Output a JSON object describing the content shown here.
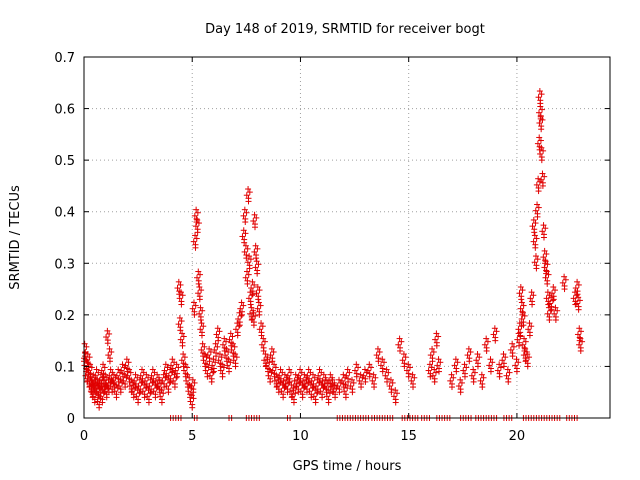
{
  "chart_data": {
    "type": "scatter",
    "title": "Day 148 of 2019, SRMTID for receiver bogt",
    "xlabel": "GPS time / hours",
    "ylabel": "SRMTID / TECUs",
    "xlim": [
      0,
      24.3
    ],
    "ylim": [
      0,
      0.7
    ],
    "xticks": [
      0,
      5,
      10,
      15,
      20
    ],
    "xtick_labels": [
      "0",
      "5",
      "10",
      "15",
      "20"
    ],
    "yticks": [
      0,
      0.1,
      0.2,
      0.3,
      0.4,
      0.5,
      0.6,
      0.7
    ],
    "ytick_labels": [
      "0",
      "0.1",
      "0.2",
      "0.3",
      "0.4",
      "0.5",
      "0.6",
      "0.7"
    ],
    "grid": true,
    "marker": "+",
    "marker_color": "#e00000",
    "series": [
      {
        "name": "SRMTID",
        "points": [
          [
            0.0,
            0.11
          ],
          [
            0.05,
            0.12
          ],
          [
            0.1,
            0.09
          ],
          [
            0.15,
            0.07
          ],
          [
            0.2,
            0.1
          ],
          [
            0.25,
            0.06
          ],
          [
            0.3,
            0.08
          ],
          [
            0.35,
            0.05
          ],
          [
            0.4,
            0.04
          ],
          [
            0.45,
            0.06
          ],
          [
            0.5,
            0.03
          ],
          [
            0.55,
            0.05
          ],
          [
            0.6,
            0.07
          ],
          [
            0.65,
            0.04
          ],
          [
            0.7,
            0.02
          ],
          [
            0.75,
            0.05
          ],
          [
            0.8,
            0.06
          ],
          [
            0.85,
            0.03
          ],
          [
            0.9,
            0.08
          ],
          [
            0.95,
            0.05
          ],
          [
            1.0,
            0.06
          ],
          [
            1.05,
            0.04
          ],
          [
            1.1,
            0.145
          ],
          [
            1.15,
            0.05
          ],
          [
            1.2,
            0.11
          ],
          [
            1.25,
            0.07
          ],
          [
            1.3,
            0.05
          ],
          [
            1.4,
            0.06
          ],
          [
            1.5,
            0.04
          ],
          [
            1.6,
            0.07
          ],
          [
            1.7,
            0.05
          ],
          [
            1.8,
            0.08
          ],
          [
            1.9,
            0.06
          ],
          [
            2.0,
            0.09
          ],
          [
            2.1,
            0.07
          ],
          [
            2.2,
            0.05
          ],
          [
            2.3,
            0.04
          ],
          [
            2.4,
            0.06
          ],
          [
            2.5,
            0.03
          ],
          [
            2.6,
            0.05
          ],
          [
            2.7,
            0.07
          ],
          [
            2.8,
            0.04
          ],
          [
            2.9,
            0.06
          ],
          [
            3.0,
            0.03
          ],
          [
            3.1,
            0.05
          ],
          [
            3.2,
            0.07
          ],
          [
            3.3,
            0.04
          ],
          [
            3.4,
            0.06
          ],
          [
            3.5,
            0.05
          ],
          [
            3.6,
            0.03
          ],
          [
            3.7,
            0.06
          ],
          [
            3.8,
            0.08
          ],
          [
            3.9,
            0.05
          ],
          [
            4.0,
            0.07
          ],
          [
            4.1,
            0.09
          ],
          [
            4.2,
            0.06
          ],
          [
            4.3,
            0.08
          ],
          [
            4.4,
            0.24
          ],
          [
            4.45,
            0.17
          ],
          [
            4.5,
            0.22
          ],
          [
            4.55,
            0.14
          ],
          [
            4.6,
            0.1
          ],
          [
            4.7,
            0.08
          ],
          [
            4.8,
            0.06
          ],
          [
            4.9,
            0.04
          ],
          [
            5.0,
            0.02
          ],
          [
            5.05,
            0.05
          ],
          [
            5.1,
            0.2
          ],
          [
            5.15,
            0.33
          ],
          [
            5.2,
            0.38
          ],
          [
            5.25,
            0.36
          ],
          [
            5.3,
            0.26
          ],
          [
            5.35,
            0.23
          ],
          [
            5.4,
            0.19
          ],
          [
            5.45,
            0.16
          ],
          [
            5.5,
            0.12
          ],
          [
            5.6,
            0.1
          ],
          [
            5.7,
            0.08
          ],
          [
            5.8,
            0.11
          ],
          [
            5.9,
            0.07
          ],
          [
            6.0,
            0.09
          ],
          [
            6.1,
            0.12
          ],
          [
            6.2,
            0.15
          ],
          [
            6.3,
            0.1
          ],
          [
            6.4,
            0.08
          ],
          [
            6.5,
            0.13
          ],
          [
            6.6,
            0.11
          ],
          [
            6.7,
            0.09
          ],
          [
            6.8,
            0.14
          ],
          [
            6.9,
            0.12
          ],
          [
            7.0,
            0.1
          ],
          [
            7.1,
            0.16
          ],
          [
            7.2,
            0.18
          ],
          [
            7.3,
            0.2
          ],
          [
            7.4,
            0.34
          ],
          [
            7.45,
            0.38
          ],
          [
            7.5,
            0.31
          ],
          [
            7.55,
            0.26
          ],
          [
            7.6,
            0.42
          ],
          [
            7.65,
            0.29
          ],
          [
            7.7,
            0.22
          ],
          [
            7.75,
            0.19
          ],
          [
            7.8,
            0.24
          ],
          [
            7.85,
            0.18
          ],
          [
            7.9,
            0.37
          ],
          [
            7.95,
            0.31
          ],
          [
            8.0,
            0.28
          ],
          [
            8.05,
            0.23
          ],
          [
            8.1,
            0.2
          ],
          [
            8.2,
            0.16
          ],
          [
            8.3,
            0.13
          ],
          [
            8.4,
            0.1
          ],
          [
            8.5,
            0.09
          ],
          [
            8.6,
            0.07
          ],
          [
            8.7,
            0.11
          ],
          [
            8.8,
            0.08
          ],
          [
            8.9,
            0.06
          ],
          [
            9.0,
            0.05
          ],
          [
            9.1,
            0.07
          ],
          [
            9.2,
            0.04
          ],
          [
            9.3,
            0.06
          ],
          [
            9.4,
            0.05
          ],
          [
            9.5,
            0.07
          ],
          [
            9.6,
            0.04
          ],
          [
            9.7,
            0.03
          ],
          [
            9.8,
            0.06
          ],
          [
            9.9,
            0.05
          ],
          [
            10.0,
            0.07
          ],
          [
            10.1,
            0.04
          ],
          [
            10.2,
            0.06
          ],
          [
            10.3,
            0.05
          ],
          [
            10.4,
            0.07
          ],
          [
            10.5,
            0.04
          ],
          [
            10.6,
            0.06
          ],
          [
            10.7,
            0.03
          ],
          [
            10.8,
            0.05
          ],
          [
            10.9,
            0.07
          ],
          [
            11.0,
            0.04
          ],
          [
            11.1,
            0.06
          ],
          [
            11.2,
            0.05
          ],
          [
            11.3,
            0.03
          ],
          [
            11.4,
            0.06
          ],
          [
            11.5,
            0.05
          ],
          [
            11.6,
            0.04
          ],
          [
            12.0,
            0.06
          ],
          [
            12.2,
            0.07
          ],
          [
            12.4,
            0.05
          ],
          [
            12.6,
            0.08
          ],
          [
            12.8,
            0.06
          ],
          [
            13.0,
            0.07
          ],
          [
            13.2,
            0.08
          ],
          [
            13.4,
            0.06
          ],
          [
            13.6,
            0.11
          ],
          [
            13.8,
            0.09
          ],
          [
            14.0,
            0.07
          ],
          [
            14.2,
            0.05
          ],
          [
            14.4,
            0.03
          ],
          [
            14.6,
            0.13
          ],
          [
            14.8,
            0.1
          ],
          [
            15.0,
            0.08
          ],
          [
            15.2,
            0.06
          ],
          [
            16.0,
            0.08
          ],
          [
            16.1,
            0.11
          ],
          [
            16.2,
            0.07
          ],
          [
            16.3,
            0.14
          ],
          [
            16.4,
            0.09
          ],
          [
            17.0,
            0.06
          ],
          [
            17.2,
            0.09
          ],
          [
            17.4,
            0.05
          ],
          [
            17.6,
            0.08
          ],
          [
            17.8,
            0.11
          ],
          [
            18.0,
            0.07
          ],
          [
            18.2,
            0.1
          ],
          [
            18.4,
            0.06
          ],
          [
            18.6,
            0.13
          ],
          [
            18.8,
            0.09
          ],
          [
            19.0,
            0.15
          ],
          [
            19.2,
            0.08
          ],
          [
            19.4,
            0.1
          ],
          [
            19.6,
            0.07
          ],
          [
            19.8,
            0.12
          ],
          [
            20.0,
            0.09
          ],
          [
            20.1,
            0.14
          ],
          [
            20.15,
            0.16
          ],
          [
            20.2,
            0.23
          ],
          [
            20.25,
            0.2
          ],
          [
            20.3,
            0.18
          ],
          [
            20.35,
            0.13
          ],
          [
            20.4,
            0.11
          ],
          [
            20.5,
            0.1
          ],
          [
            20.6,
            0.16
          ],
          [
            20.7,
            0.22
          ],
          [
            20.8,
            0.36
          ],
          [
            20.85,
            0.33
          ],
          [
            20.9,
            0.29
          ],
          [
            20.95,
            0.39
          ],
          [
            21.0,
            0.44
          ],
          [
            21.05,
            0.52
          ],
          [
            21.08,
            0.61
          ],
          [
            21.1,
            0.58
          ],
          [
            21.12,
            0.56
          ],
          [
            21.15,
            0.5
          ],
          [
            21.2,
            0.45
          ],
          [
            21.25,
            0.35
          ],
          [
            21.3,
            0.3
          ],
          [
            21.35,
            0.28
          ],
          [
            21.4,
            0.26
          ],
          [
            21.45,
            0.22
          ],
          [
            21.5,
            0.19
          ],
          [
            21.6,
            0.21
          ],
          [
            21.7,
            0.23
          ],
          [
            21.8,
            0.19
          ],
          [
            22.2,
            0.25
          ],
          [
            22.8,
            0.24
          ],
          [
            22.85,
            0.21
          ],
          [
            22.9,
            0.15
          ],
          [
            22.95,
            0.13
          ],
          [
            22.7,
            0.22
          ],
          [
            11.8,
            0.05
          ],
          [
            12.1,
            0.04
          ]
        ]
      }
    ],
    "zero_band": [
      [
        4.0,
        4.6
      ],
      [
        5.1,
        5.3
      ],
      [
        6.7,
        6.9
      ],
      [
        7.5,
        8.1
      ],
      [
        9.4,
        9.6
      ],
      [
        11.7,
        13.2
      ],
      [
        13.3,
        14.3
      ],
      [
        14.7,
        15.5
      ],
      [
        15.6,
        16.0
      ],
      [
        16.3,
        17.0
      ],
      [
        17.4,
        18.0
      ],
      [
        18.1,
        19.1
      ],
      [
        19.4,
        19.8
      ],
      [
        20.3,
        22.0
      ],
      [
        22.3,
        22.9
      ]
    ]
  }
}
